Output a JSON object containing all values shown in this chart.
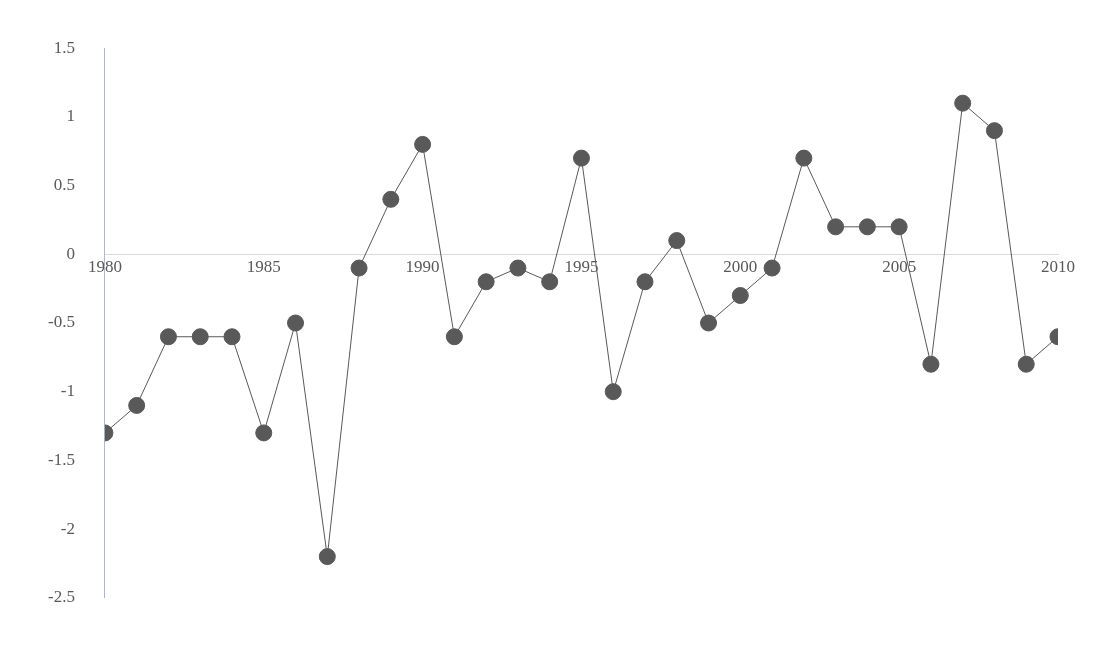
{
  "chart_data": {
    "type": "line",
    "x": [
      1980,
      1981,
      1982,
      1983,
      1984,
      1985,
      1986,
      1987,
      1988,
      1989,
      1990,
      1991,
      1992,
      1993,
      1994,
      1995,
      1996,
      1997,
      1998,
      1999,
      2000,
      2001,
      2002,
      2003,
      2004,
      2005,
      2006,
      2007,
      2008,
      2009,
      2010
    ],
    "series": [
      {
        "color": "#595959",
        "values": [
          -1.3,
          -1.1,
          -0.6,
          -0.6,
          -0.6,
          -1.3,
          -0.5,
          -2.2,
          -0.1,
          0.4,
          0.8,
          -0.6,
          -0.2,
          -0.1,
          -0.2,
          0.7,
          -1.0,
          -0.2,
          0.1,
          -0.5,
          -0.3,
          -0.1,
          0.7,
          0.2,
          0.2,
          0.2,
          -0.8,
          1.1,
          0.9,
          -0.8,
          -0.6
        ]
      }
    ],
    "xlim": [
      1980,
      2010
    ],
    "xticks": [
      1980,
      1985,
      1990,
      1995,
      2000,
      2005,
      2010
    ],
    "ylim": [
      -2.5,
      1.5
    ],
    "yticks": [
      -2.5,
      -2,
      -1.5,
      -1,
      -0.5,
      0,
      0.5,
      1,
      1.5
    ],
    "grid": false,
    "legend": false,
    "marker": "circle",
    "line_style": "solid"
  }
}
